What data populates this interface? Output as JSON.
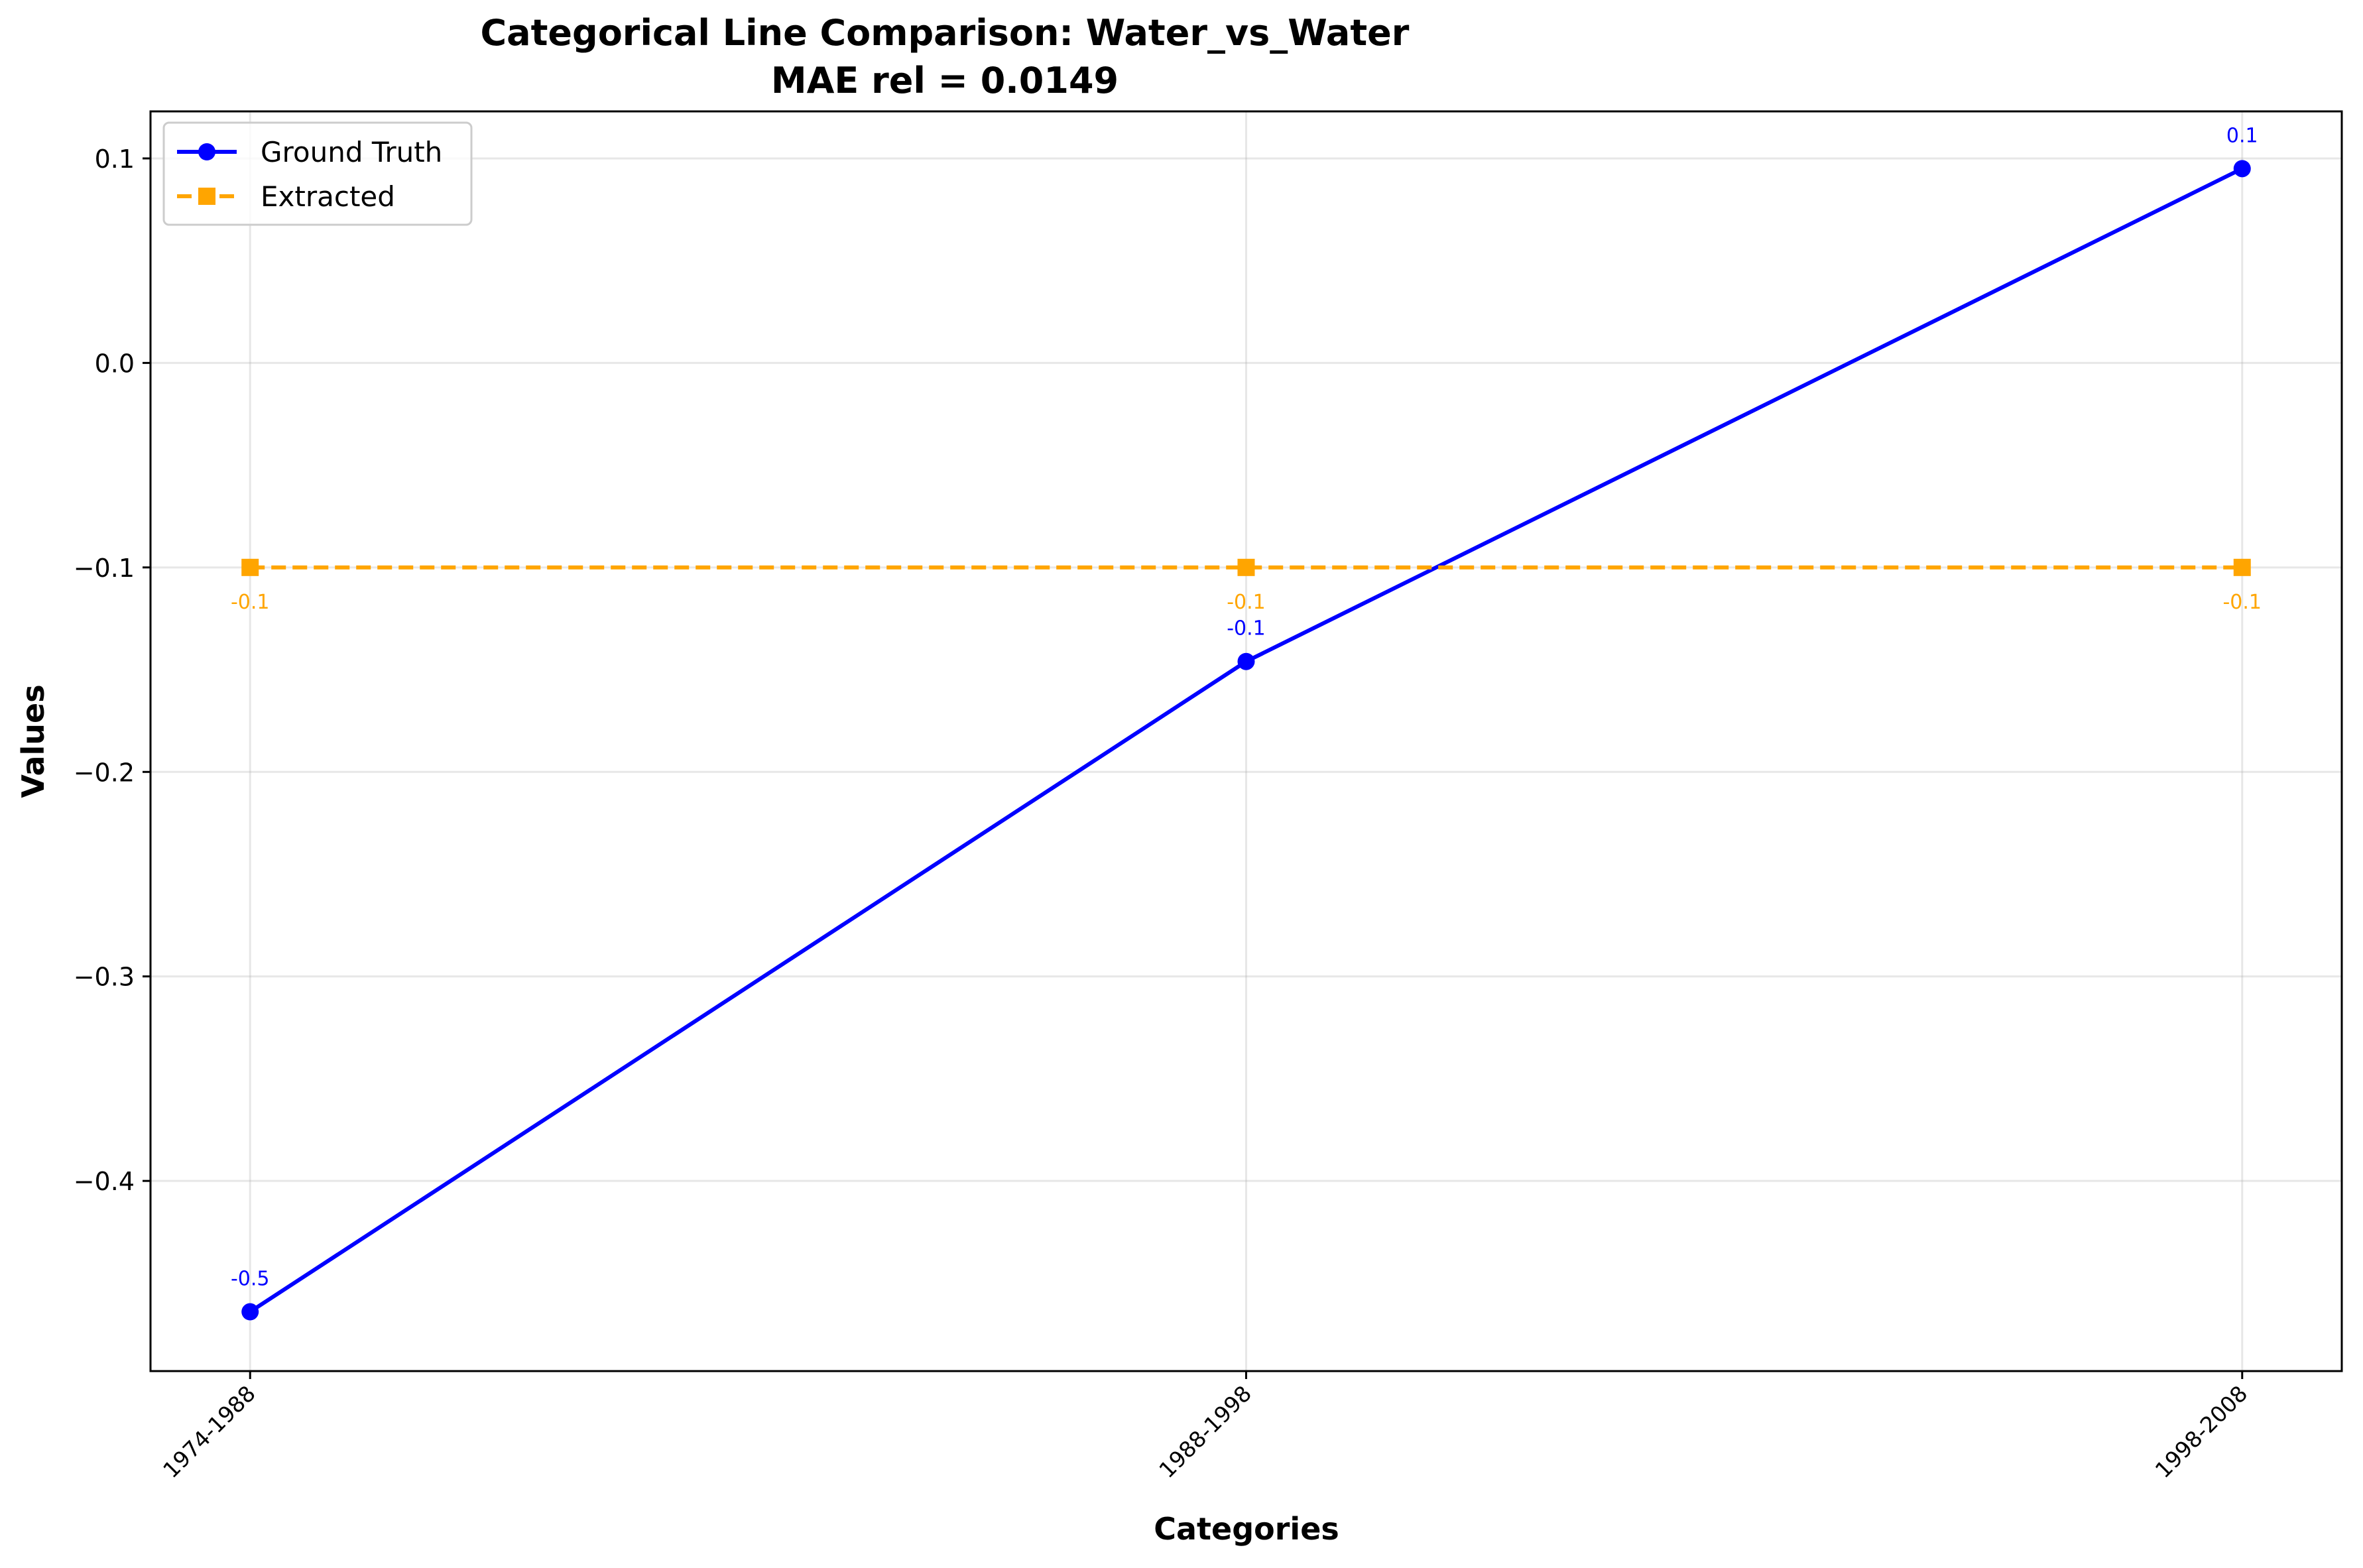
{
  "chart_data": {
    "type": "line",
    "title": "Categorical Line Comparison: Water_vs_Water",
    "subtitle": "MAE rel = 0.0149",
    "xlabel": "Categories",
    "ylabel": "Values",
    "categories": [
      "1974-1988",
      "1988-1998",
      "1998-2008"
    ],
    "ylim": [
      -0.493,
      0.123
    ],
    "yticks": [
      -0.4,
      -0.3,
      -0.2,
      -0.1,
      0.0,
      0.1
    ],
    "ytick_labels": [
      "−0.4",
      "−0.3",
      "−0.2",
      "−0.1",
      "0.0",
      "0.1"
    ],
    "grid": true,
    "legend_position": "top-left",
    "series": [
      {
        "name": "Ground Truth",
        "values": [
          -0.464,
          -0.146,
          0.095
        ],
        "labels": [
          "-0.5",
          "-0.1",
          "0.1"
        ],
        "color": "#0000ff",
        "marker": "circle",
        "linestyle": "solid"
      },
      {
        "name": "Extracted",
        "values": [
          -0.1,
          -0.1,
          -0.1
        ],
        "labels": [
          "-0.1",
          "-0.1",
          "-0.1"
        ],
        "color": "#ffa500",
        "marker": "square",
        "linestyle": "dashed"
      }
    ]
  }
}
